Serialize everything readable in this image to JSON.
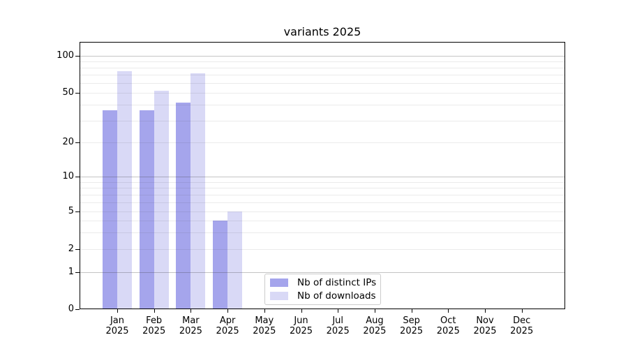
{
  "title": "variants 2025",
  "legend": {
    "items": [
      {
        "label": "Nb of distinct IPs",
        "color": "#a5a5ec"
      },
      {
        "label": "Nb of downloads",
        "color": "#d9d9f6"
      }
    ]
  },
  "chart_data": {
    "type": "bar",
    "title": "variants 2025",
    "categories": [
      "Jan 2025",
      "Feb 2025",
      "Mar 2025",
      "Apr 2025",
      "May 2025",
      "Jun 2025",
      "Jul 2025",
      "Aug 2025",
      "Sep 2025",
      "Oct 2025",
      "Nov 2025",
      "Dec 2025"
    ],
    "series": [
      {
        "name": "Nb of distinct IPs",
        "color": "#a5a5ec",
        "values": [
          36,
          36,
          42,
          4,
          0,
          0,
          0,
          0,
          0,
          0,
          0,
          0
        ]
      },
      {
        "name": "Nb of downloads",
        "color": "#d9d9f6",
        "values": [
          75,
          52,
          72,
          5,
          0,
          0,
          0,
          0,
          0,
          0,
          0,
          0
        ]
      }
    ],
    "yscale": "log-like (0,1,2,5,10,20,50,100)",
    "yticks": [
      0,
      1,
      2,
      5,
      10,
      20,
      50,
      100
    ],
    "ytick_labels": [
      "0",
      "1",
      "2",
      "5",
      "10",
      "20",
      "50",
      "100"
    ],
    "major_grid_values": [
      1,
      10,
      100
    ],
    "minor_grid_values": [
      2,
      3,
      4,
      5,
      6,
      7,
      8,
      9,
      20,
      30,
      40,
      50,
      60,
      70,
      80,
      90
    ],
    "ylim": [
      0,
      130
    ],
    "grid": "horizontal, major + minor, drawn over bars",
    "legend_position": "lower center"
  }
}
